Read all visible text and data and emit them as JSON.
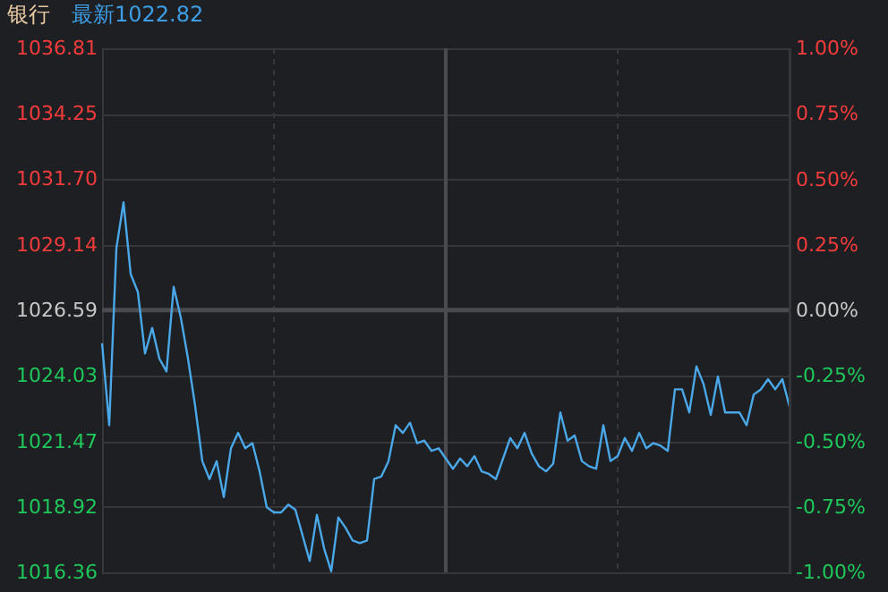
{
  "chart_data": {
    "type": "line",
    "title": "银行",
    "subtitle": "最新1022.82",
    "categories": [
      null,
      null,
      null,
      null,
      null,
      null,
      null,
      null,
      null,
      null,
      null,
      null,
      null,
      null,
      null,
      null,
      null,
      null,
      null,
      null,
      null,
      null,
      null,
      null,
      null,
      null,
      null,
      null,
      null,
      null,
      null,
      null,
      null,
      null,
      null,
      null,
      null,
      null,
      null,
      null,
      null,
      null,
      null,
      null,
      null,
      null,
      null,
      null,
      null,
      null,
      null,
      null,
      null,
      null,
      null,
      null,
      null,
      null,
      null,
      null,
      null,
      null,
      null,
      null,
      null,
      null,
      null,
      null,
      null,
      null,
      null,
      null,
      null,
      null,
      null,
      null,
      null,
      null,
      null,
      null,
      null,
      null,
      null,
      null,
      null,
      null,
      null,
      null,
      null,
      null,
      null,
      null,
      null,
      null,
      null,
      null,
      null
    ],
    "series": [
      {
        "color": "#4aa8e8",
        "values": [
          1025.3,
          1022.1,
          1029.0,
          1030.8,
          1028.0,
          1027.3,
          1024.9,
          1025.9,
          1024.7,
          1024.2,
          1027.5,
          1026.3,
          1024.7,
          1022.85,
          1020.7,
          1020.0,
          1020.7,
          1019.3,
          1021.2,
          1021.8,
          1021.2,
          1021.4,
          1020.3,
          1018.9,
          1018.7,
          1018.7,
          1019.0,
          1018.8,
          1017.8,
          1016.8,
          1018.6,
          1017.3,
          1016.4,
          1018.5,
          1018.1,
          1017.6,
          1017.5,
          1017.6,
          1020.0,
          1020.1,
          1020.7,
          1022.1,
          1021.8,
          1022.2,
          1021.4,
          1021.5,
          1021.1,
          1021.2,
          1020.8,
          1020.4,
          1020.8,
          1020.5,
          1020.9,
          1020.3,
          1020.2,
          1020.0,
          1020.8,
          1021.6,
          1021.2,
          1021.8,
          1021.0,
          1020.5,
          1020.3,
          1020.6,
          1022.6,
          1021.5,
          1021.7,
          1020.7,
          1020.5,
          1020.4,
          1022.1,
          1020.7,
          1020.9,
          1021.6,
          1021.1,
          1021.8,
          1021.2,
          1021.4,
          1021.3,
          1021.1,
          1023.5,
          1023.5,
          1022.6,
          1024.4,
          1023.7,
          1022.5,
          1024.0,
          1022.6,
          1022.6,
          1022.6,
          1022.1,
          1023.3,
          1023.5,
          1023.9,
          1023.5,
          1023.9,
          1022.82
        ]
      }
    ],
    "ylim": [
      1016.36,
      1036.81
    ],
    "yticks": [
      1016.36,
      1018.92,
      1021.47,
      1024.03,
      1026.59,
      1029.14,
      {
        "value": 1031.7,
        "label": "1031.70"
      },
      1034.25,
      1036.81
    ],
    "y2lim": [
      -1,
      1
    ],
    "y2ticks": [
      {
        "value": -1,
        "label": "-1.00%"
      },
      {
        "value": -0.75,
        "label": "-0.75%"
      },
      {
        "value": -0.5,
        "label": "-0.50%"
      },
      {
        "value": -0.25,
        "label": "-0.25%"
      },
      {
        "value": 0,
        "label": "0.00%"
      },
      {
        "value": 0.25,
        "label": "0.25%"
      },
      {
        "value": 0.5,
        "label": "0.50%"
      },
      {
        "value": 0.75,
        "label": "0.75%"
      },
      {
        "value": 1,
        "label": "1.00%"
      }
    ],
    "ref_lines": [
      {
        "axis": "y",
        "value": 1026.59,
        "color": "#4a4b4f"
      }
    ],
    "grid": true,
    "tick_labels": "y"
  }
}
